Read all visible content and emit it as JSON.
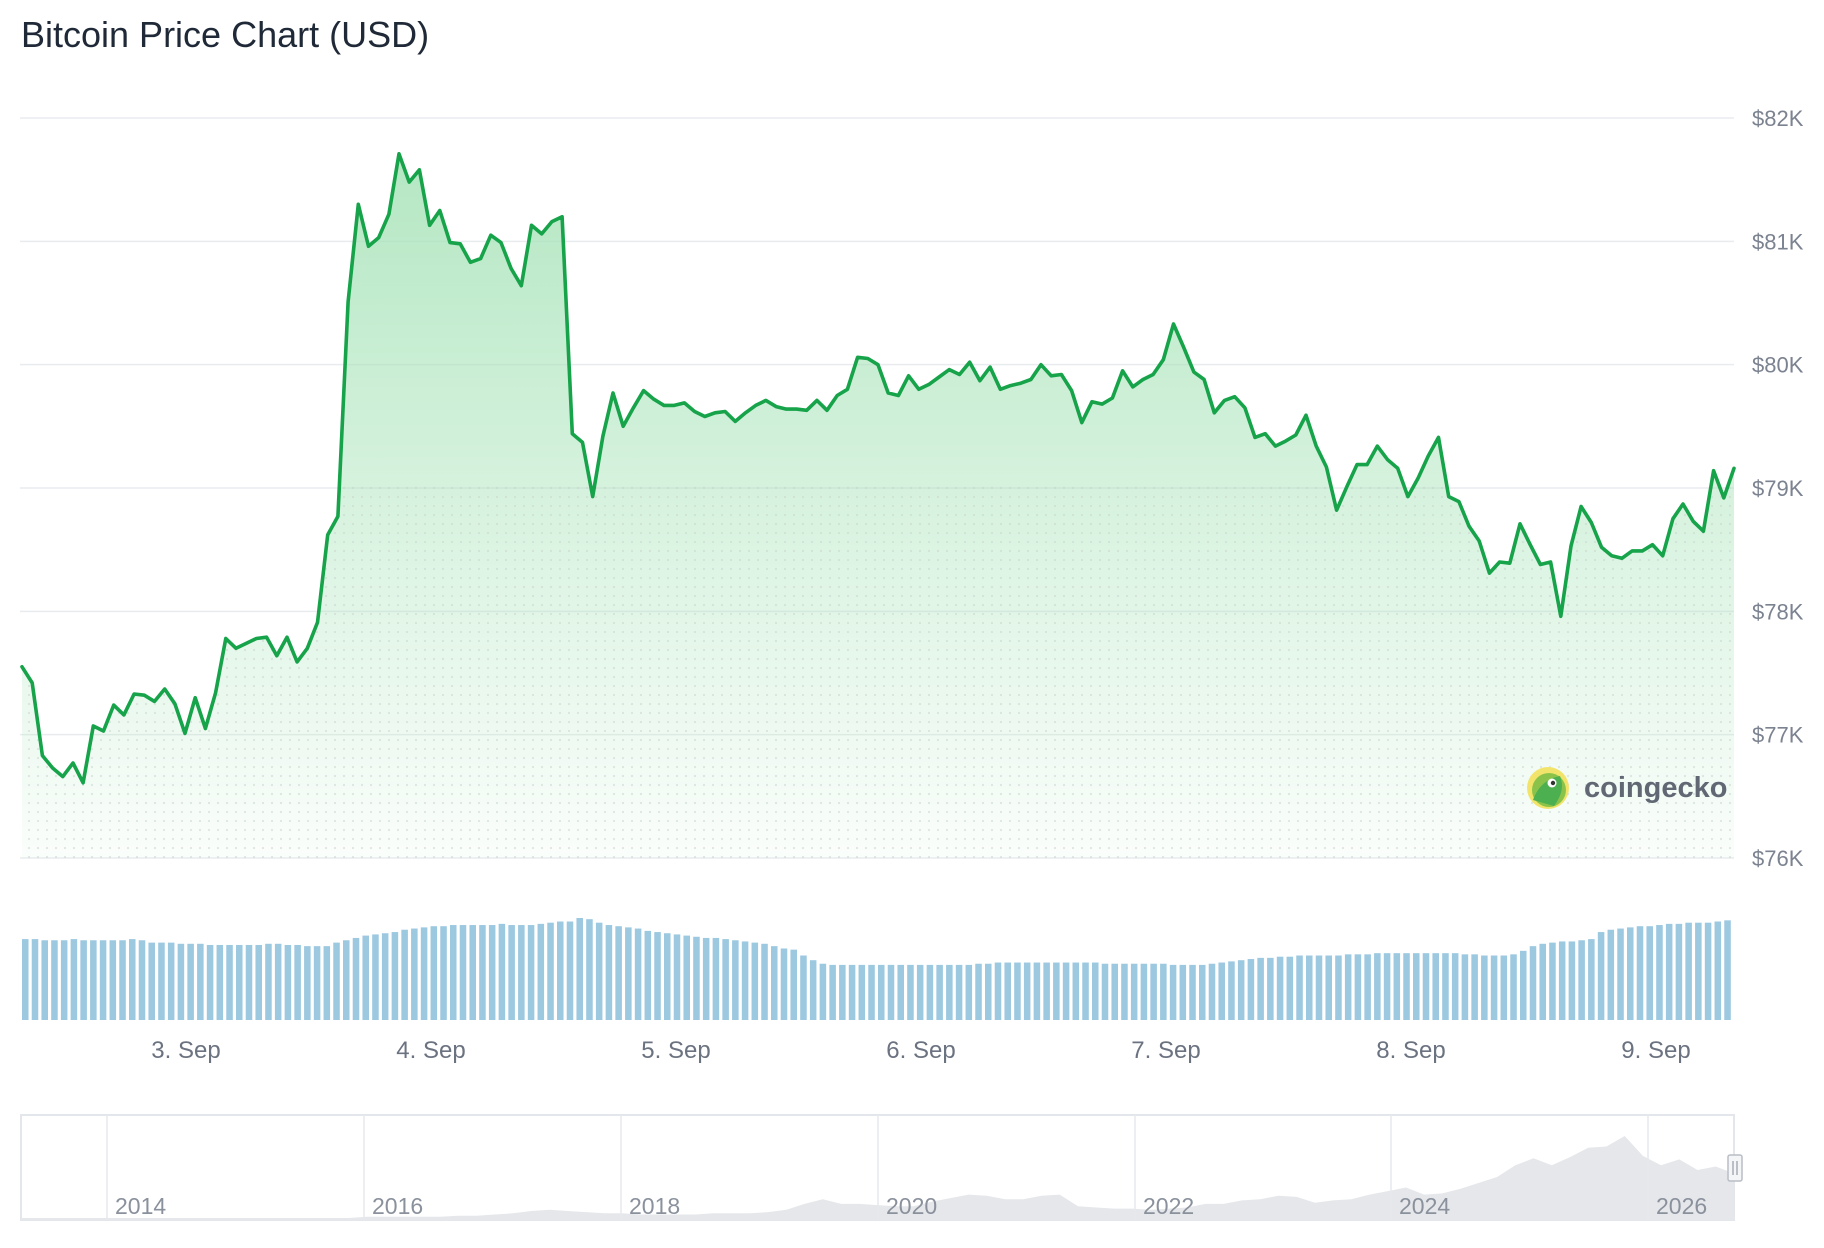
{
  "title": "Bitcoin Price Chart (USD)",
  "brand": {
    "name": "coingecko",
    "icon": "gecko-logo-icon"
  },
  "colors": {
    "line": "#16a34a",
    "area_top": "#a7e3b8",
    "volume_bar": "#9cc8e0",
    "grid": "#e9ecef",
    "navigator_area": "#e5e7ea"
  },
  "chart_data": {
    "type": "line",
    "series": [
      {
        "values": [
          77550,
          77420,
          76830,
          76730,
          76660,
          76770,
          76610,
          77070,
          77030,
          77240,
          77160,
          77330,
          77320,
          77270,
          77370,
          77250,
          77010,
          77300,
          77050,
          77340,
          77780,
          77700,
          77740,
          77780,
          77790,
          77640,
          77790,
          77590,
          77700,
          77910,
          78620,
          78770,
          80510,
          81300,
          80960,
          81030,
          81220,
          81710,
          81480,
          81580,
          81130,
          81250,
          80990,
          80980,
          80830,
          80860,
          81050,
          80990,
          80780,
          80640,
          81130,
          81060,
          81160,
          81200,
          79440,
          79370,
          78930,
          79420,
          79770,
          79500,
          79650,
          79790,
          79720,
          79670,
          79670,
          79690,
          79620,
          79580,
          79610,
          79620,
          79540,
          79610,
          79670,
          79710,
          79660,
          79640,
          79640,
          79630,
          79710,
          79630,
          79750,
          79800,
          80060,
          80050,
          80000,
          79770,
          79750,
          79910,
          79800,
          79840,
          79900,
          79960,
          79920,
          80020,
          79870,
          79980,
          79800,
          79830,
          79850,
          79880,
          80000,
          79910,
          79920,
          79790,
          79530,
          79700,
          79680,
          79730,
          79950,
          79820,
          79880,
          79920,
          80040,
          80330,
          80140,
          79940,
          79880,
          79610,
          79710,
          79740,
          79650,
          79410,
          79440,
          79340,
          79380,
          79430,
          79590,
          79340,
          79170,
          78820,
          79010,
          79190,
          79190,
          79340,
          79230,
          79160,
          78930,
          79080,
          79260,
          79410,
          78930,
          78890,
          78690,
          78570,
          78310,
          78400,
          78390,
          78710,
          78540,
          78380,
          78400,
          77960,
          78530,
          78850,
          78720,
          78520,
          78450,
          78430,
          78490,
          78490,
          78540,
          78450,
          78750,
          78870,
          78730,
          78650,
          79140,
          78920,
          79160
        ]
      }
    ],
    "volume": [
      69,
      69,
      68,
      68,
      68,
      69,
      68,
      68,
      68,
      68,
      68,
      69,
      68,
      66,
      66,
      66,
      65,
      65,
      65,
      64,
      64,
      64,
      64,
      64,
      64,
      65,
      65,
      64,
      64,
      63,
      63,
      63,
      66,
      68,
      70,
      72,
      73,
      74,
      75,
      77,
      78,
      79,
      80,
      80,
      81,
      81,
      81,
      81,
      81,
      82,
      81,
      81,
      81,
      82,
      83,
      84,
      84,
      87,
      86,
      83,
      81,
      80,
      79,
      78,
      76,
      75,
      74,
      73,
      72,
      71,
      70,
      70,
      69,
      68,
      67,
      66,
      65,
      63,
      61,
      60,
      55,
      51,
      48,
      47,
      47,
      47,
      47,
      47,
      47,
      47,
      47,
      47,
      47,
      47,
      47,
      47,
      47,
      47,
      48,
      48,
      49,
      49,
      49,
      49,
      49,
      49,
      49,
      49,
      49,
      49,
      49,
      48,
      48,
      48,
      48,
      48,
      48,
      48,
      47,
      47,
      47,
      47,
      48,
      49,
      50,
      51,
      52,
      53,
      53,
      54,
      54,
      55,
      55,
      55,
      55,
      55,
      56,
      56,
      56,
      57,
      57,
      57,
      57,
      57,
      57,
      57,
      57,
      57,
      56,
      56,
      55,
      55,
      55,
      56,
      59,
      63,
      65,
      66,
      67,
      67,
      68,
      69,
      75,
      77,
      78,
      79,
      80,
      80,
      81,
      82,
      82,
      83,
      83,
      83,
      84,
      85
    ],
    "x_ticks": [
      "3. Sep",
      "4. Sep",
      "5. Sep",
      "6. Sep",
      "7. Sep",
      "8. Sep",
      "9. Sep"
    ],
    "y_ticks": [
      "$82K",
      "$81K",
      "$80K",
      "$79K",
      "$78K",
      "$77K",
      "$76K"
    ],
    "ylim": [
      76000,
      82000
    ],
    "grid": true,
    "axis_side": "right",
    "navigator": {
      "labels": [
        "2014",
        "2016",
        "2018",
        "2020",
        "2022",
        "2024",
        "2026"
      ],
      "values": [
        0,
        0,
        0,
        0,
        0,
        0,
        0,
        0,
        0,
        0,
        0,
        0,
        0,
        0,
        0,
        0,
        0,
        0,
        0,
        1,
        1,
        1,
        1,
        1,
        2,
        2,
        3,
        4,
        6,
        7,
        6,
        5,
        4,
        4,
        3,
        3,
        3,
        3,
        4,
        4,
        4,
        5,
        7,
        12,
        16,
        12,
        12,
        11,
        10,
        10,
        14,
        17,
        20,
        19,
        16,
        16,
        19,
        20,
        10,
        9,
        8,
        8,
        7,
        8,
        9,
        12,
        12,
        15,
        16,
        19,
        18,
        13,
        15,
        16,
        20,
        23,
        26,
        20,
        21,
        25,
        30,
        35,
        45,
        51,
        45,
        52,
        60,
        61,
        70,
        53,
        45,
        50,
        41,
        44,
        38
      ]
    }
  }
}
